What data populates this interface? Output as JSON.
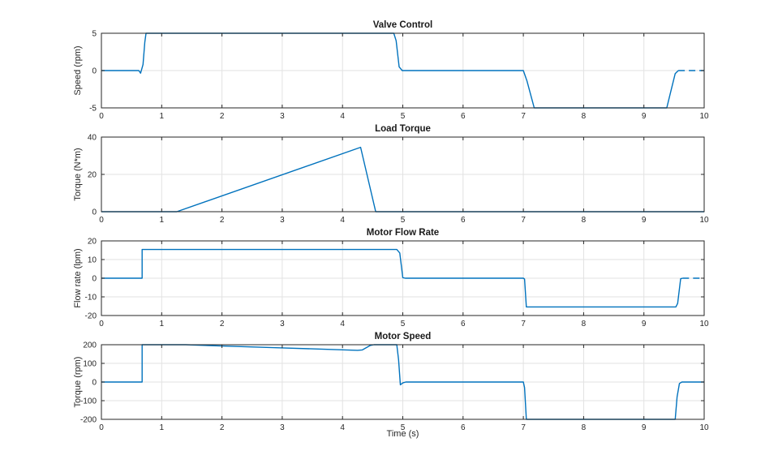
{
  "figure": {
    "background": "#ffffff",
    "axis_color": "#262626",
    "grid_color": "#e2e2e2",
    "line_color": "#0072BD"
  },
  "chart_data": [
    {
      "type": "line",
      "title": "Valve Control",
      "ylabel": "Speed (rpm)",
      "xlim": [
        0,
        10
      ],
      "ylim": [
        -5,
        5
      ],
      "xticks": [
        0,
        1,
        2,
        3,
        4,
        5,
        6,
        7,
        8,
        9,
        10
      ],
      "yticks": [
        -5,
        0,
        5
      ],
      "grid": true,
      "legend": "none",
      "series": [
        {
          "color": "#0072BD",
          "segments": [
            {
              "style": "solid",
              "points": [
                [
                  0,
                  0
                ],
                [
                  0.62,
                  0
                ],
                [
                  0.65,
                  -0.35
                ],
                [
                  0.69,
                  0.8
                ],
                [
                  0.72,
                  3.8
                ],
                [
                  0.74,
                  5
                ],
                [
                  4.85,
                  5
                ],
                [
                  4.89,
                  4.0
                ],
                [
                  4.94,
                  0.5
                ],
                [
                  4.99,
                  0
                ],
                [
                  7.0,
                  0
                ],
                [
                  7.06,
                  -1.4
                ],
                [
                  7.18,
                  -5
                ],
                [
                  9.38,
                  -5
                ],
                [
                  9.44,
                  -3.0
                ],
                [
                  9.52,
                  -0.4
                ],
                [
                  9.57,
                  0
                ]
              ]
            },
            {
              "style": "dashed",
              "points": [
                [
                  9.57,
                  0
                ],
                [
                  10,
                  0
                ]
              ]
            }
          ]
        }
      ]
    },
    {
      "type": "line",
      "title": "Load Torque",
      "ylabel": "Torque (N*m)",
      "xlim": [
        0,
        10
      ],
      "ylim": [
        0,
        40
      ],
      "xticks": [
        0,
        1,
        2,
        3,
        4,
        5,
        6,
        7,
        8,
        9,
        10
      ],
      "yticks": [
        0,
        20,
        40
      ],
      "grid": true,
      "legend": "none",
      "series": [
        {
          "color": "#0072BD",
          "segments": [
            {
              "style": "solid",
              "points": [
                [
                  0,
                  0
                ],
                [
                  1.25,
                  0
                ],
                [
                  4.3,
                  34.5
                ],
                [
                  4.55,
                  0
                ],
                [
                  10,
                  0
                ]
              ]
            }
          ]
        }
      ]
    },
    {
      "type": "line",
      "title": "Motor Flow Rate",
      "ylabel": "Flow rate (lpm)",
      "xlim": [
        0,
        10
      ],
      "ylim": [
        -20,
        20
      ],
      "xticks": [
        0,
        1,
        2,
        3,
        4,
        5,
        6,
        7,
        8,
        9,
        10
      ],
      "yticks": [
        -20,
        -10,
        0,
        10,
        20
      ],
      "grid": true,
      "legend": "none",
      "series": [
        {
          "color": "#0072BD",
          "segments": [
            {
              "style": "solid",
              "points": [
                [
                  0,
                  0
                ],
                [
                  0.675,
                  0
                ],
                [
                  0.675,
                  15.4
                ],
                [
                  4.9,
                  15.4
                ],
                [
                  4.95,
                  13.5
                ],
                [
                  5.0,
                  0.3
                ],
                [
                  5.04,
                  0
                ],
                [
                  7.0,
                  0
                ],
                [
                  7.02,
                  -0.5
                ],
                [
                  7.05,
                  -15.4
                ],
                [
                  9.53,
                  -15.4
                ],
                [
                  9.56,
                  -13.5
                ],
                [
                  9.61,
                  -0.3
                ],
                [
                  9.64,
                  0
                ]
              ]
            },
            {
              "style": "dashed",
              "points": [
                [
                  9.64,
                  0
                ],
                [
                  10,
                  0
                ]
              ]
            }
          ]
        }
      ]
    },
    {
      "type": "line",
      "title": "Motor Speed",
      "ylabel": "Torque (rpm)",
      "xlabel": "Time (s)",
      "xlim": [
        0,
        10
      ],
      "ylim": [
        -200,
        200
      ],
      "xticks": [
        0,
        1,
        2,
        3,
        4,
        5,
        6,
        7,
        8,
        9,
        10
      ],
      "yticks": [
        -200,
        -100,
        0,
        100,
        200
      ],
      "grid": true,
      "legend": "none",
      "series": [
        {
          "color": "#0072BD",
          "segments": [
            {
              "style": "solid",
              "points": [
                [
                  0,
                  0
                ],
                [
                  0.675,
                  0
                ],
                [
                  0.675,
                  200
                ],
                [
                  1.4,
                  200
                ],
                [
                  2.0,
                  193
                ],
                [
                  3.0,
                  183
                ],
                [
                  4.25,
                  170
                ],
                [
                  4.33,
                  172
                ],
                [
                  4.46,
                  196
                ],
                [
                  4.52,
                  200
                ],
                [
                  4.9,
                  200
                ],
                [
                  4.93,
                  120
                ],
                [
                  4.96,
                  -15
                ],
                [
                  5.0,
                  -5
                ],
                [
                  5.05,
                  0
                ],
                [
                  7.0,
                  0
                ],
                [
                  7.02,
                  -30
                ],
                [
                  7.05,
                  -200
                ],
                [
                  9.52,
                  -200
                ],
                [
                  9.55,
                  -80
                ],
                [
                  9.59,
                  -8
                ],
                [
                  9.63,
                  0
                ],
                [
                  10,
                  0
                ]
              ]
            }
          ]
        }
      ]
    }
  ]
}
